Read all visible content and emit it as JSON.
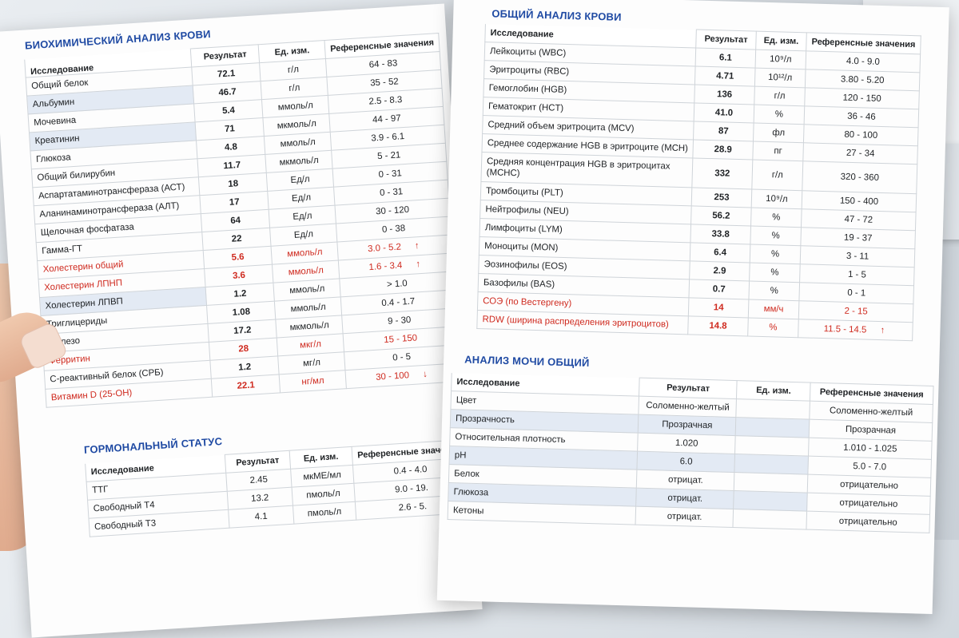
{
  "biochem": {
    "title": "БИОХИМИЧЕСКИЙ АНАЛИЗ КРОВИ",
    "headers": [
      "Исследование",
      "Результат",
      "Ед. изм.",
      "Референсные значения"
    ],
    "rows": [
      {
        "name": "Общий белок",
        "result": "72.1",
        "unit": "г/л",
        "ref": "64 - 83",
        "flag": ""
      },
      {
        "name": "Альбумин",
        "result": "46.7",
        "unit": "г/л",
        "ref": "35 - 52",
        "flag": ""
      },
      {
        "name": "Мочевина",
        "result": "5.4",
        "unit": "ммоль/л",
        "ref": "2.5 - 8.3",
        "flag": ""
      },
      {
        "name": "Креатинин",
        "result": "71",
        "unit": "мкмоль/л",
        "ref": "44 - 97",
        "flag": ""
      },
      {
        "name": "Глюкоза",
        "result": "4.8",
        "unit": "ммоль/л",
        "ref": "3.9 - 6.1",
        "flag": ""
      },
      {
        "name": "Общий билирубин",
        "result": "11.7",
        "unit": "мкмоль/л",
        "ref": "5 - 21",
        "flag": ""
      },
      {
        "name": "Аспартатаминотрансфераза (АСТ)",
        "result": "18",
        "unit": "Ед/л",
        "ref": "0 - 31",
        "flag": ""
      },
      {
        "name": "Аланинаминотрансфераза (АЛТ)",
        "result": "17",
        "unit": "Ед/л",
        "ref": "0 - 31",
        "flag": ""
      },
      {
        "name": "Щелочная фосфатаза",
        "result": "64",
        "unit": "Ед/л",
        "ref": "30 - 120",
        "flag": ""
      },
      {
        "name": "Гамма-ГТ",
        "result": "22",
        "unit": "Ед/л",
        "ref": "0 - 38",
        "flag": ""
      },
      {
        "name": "Холестерин общий",
        "result": "5.6",
        "unit": "ммоль/л",
        "ref": "3.0 - 5.2",
        "flag": "↑"
      },
      {
        "name": "Холестерин ЛПНП",
        "result": "3.6",
        "unit": "ммоль/л",
        "ref": "1.6 - 3.4",
        "flag": "↑"
      },
      {
        "name": "Холестерин ЛПВП",
        "result": "1.2",
        "unit": "ммоль/л",
        "ref": "> 1.0",
        "flag": ""
      },
      {
        "name": "Триглицериды",
        "result": "1.08",
        "unit": "ммоль/л",
        "ref": "0.4 - 1.7",
        "flag": ""
      },
      {
        "name": "Железо",
        "result": "17.2",
        "unit": "мкмоль/л",
        "ref": "9 - 30",
        "flag": ""
      },
      {
        "name": "Ферритин",
        "result": "28",
        "unit": "мкг/л",
        "ref": "15 - 150",
        "flag": ""
      },
      {
        "name": "С-реактивный белок (СРБ)",
        "result": "1.2",
        "unit": "мг/л",
        "ref": "0 - 5",
        "flag": ""
      },
      {
        "name": "Витамин D (25-OH)",
        "result": "22.1",
        "unit": "нг/мл",
        "ref": "30 - 100",
        "flag": "↓"
      }
    ]
  },
  "hormonal": {
    "title": "ГОРМОНАЛЬНЫЙ СТАТУС",
    "headers": [
      "Исследование",
      "Результат",
      "Ед. изм.",
      "Референсные значения"
    ],
    "rows": [
      {
        "name": "ТТГ",
        "result": "2.45",
        "unit": "мкМЕ/мл",
        "ref": "0.4 - 4.0"
      },
      {
        "name": "Свободный Т4",
        "result": "13.2",
        "unit": "пмоль/л",
        "ref": "9.0 - 19."
      },
      {
        "name": "Свободный Т3",
        "result": "4.1",
        "unit": "пмоль/л",
        "ref": "2.6 - 5."
      }
    ]
  },
  "cbc": {
    "title": "ОБЩИЙ АНАЛИЗ КРОВИ",
    "headers": [
      "Исследование",
      "Результат",
      "Ед. изм.",
      "Референсные значения"
    ],
    "rows": [
      {
        "name": "Лейкоциты (WBC)",
        "result": "6.1",
        "unit": "10⁹/л",
        "ref": "4.0 - 9.0",
        "flag": ""
      },
      {
        "name": "Эритроциты (RBC)",
        "result": "4.71",
        "unit": "10¹²/л",
        "ref": "3.80 - 5.20",
        "flag": ""
      },
      {
        "name": "Гемоглобин (HGB)",
        "result": "136",
        "unit": "г/л",
        "ref": "120 - 150",
        "flag": ""
      },
      {
        "name": "Гематокрит (HCT)",
        "result": "41.0",
        "unit": "%",
        "ref": "36 - 46",
        "flag": ""
      },
      {
        "name": "Средний объем эритроцита (MCV)",
        "result": "87",
        "unit": "фл",
        "ref": "80 - 100",
        "flag": ""
      },
      {
        "name": "Среднее содержание HGB в эритроците (MCH)",
        "result": "28.9",
        "unit": "пг",
        "ref": "27 - 34",
        "flag": ""
      },
      {
        "name": "Средняя концентрация HGB в эритроцитах (MCHC)",
        "result": "332",
        "unit": "г/л",
        "ref": "320 - 360",
        "flag": ""
      },
      {
        "name": "Тромбоциты (PLT)",
        "result": "253",
        "unit": "10⁹/л",
        "ref": "150 - 400",
        "flag": ""
      },
      {
        "name": "Нейтрофилы (NEU)",
        "result": "56.2",
        "unit": "%",
        "ref": "47 - 72",
        "flag": ""
      },
      {
        "name": "Лимфоциты (LYM)",
        "result": "33.8",
        "unit": "%",
        "ref": "19 - 37",
        "flag": ""
      },
      {
        "name": "Моноциты (MON)",
        "result": "6.4",
        "unit": "%",
        "ref": "3 - 11",
        "flag": ""
      },
      {
        "name": "Эозинофилы (EOS)",
        "result": "2.9",
        "unit": "%",
        "ref": "1 - 5",
        "flag": ""
      },
      {
        "name": "Базофилы (BAS)",
        "result": "0.7",
        "unit": "%",
        "ref": "0 - 1",
        "flag": ""
      },
      {
        "name": "СОЭ (по Вестергену)",
        "result": "14",
        "unit": "мм/ч",
        "ref": "2 - 15",
        "flag": ""
      },
      {
        "name": "RDW (ширина распределения эритроцитов)",
        "result": "14.8",
        "unit": "%",
        "ref": "11.5 - 14.5",
        "flag": "↑"
      }
    ]
  },
  "urine": {
    "title": "АНАЛИЗ МОЧИ ОБЩИЙ",
    "headers": [
      "Исследование",
      "Результат",
      "Ед. изм.",
      "Референсные значения"
    ],
    "rows": [
      {
        "name": "Цвет",
        "result": "Соломенно-желтый",
        "unit": "",
        "ref": "Соломенно-желтый"
      },
      {
        "name": "Прозрачность",
        "result": "Прозрачная",
        "unit": "",
        "ref": "Прозрачная"
      },
      {
        "name": "Относительная плотность",
        "result": "1.020",
        "unit": "",
        "ref": "1.010 - 1.025"
      },
      {
        "name": "pH",
        "result": "6.0",
        "unit": "",
        "ref": "5.0 - 7.0"
      },
      {
        "name": "Белок",
        "result": "отрицат.",
        "unit": "",
        "ref": "отрицательно"
      },
      {
        "name": "Глюкоза",
        "result": "отрицат.",
        "unit": "",
        "ref": "отрицательно"
      },
      {
        "name": "Кетоны",
        "result": "отрицат.",
        "unit": "",
        "ref": "отрицательно"
      }
    ]
  },
  "colors": {
    "accent": "#1f4aa3",
    "abnormal": "#cf2a1f",
    "row_shade": "#e3eaf4"
  }
}
